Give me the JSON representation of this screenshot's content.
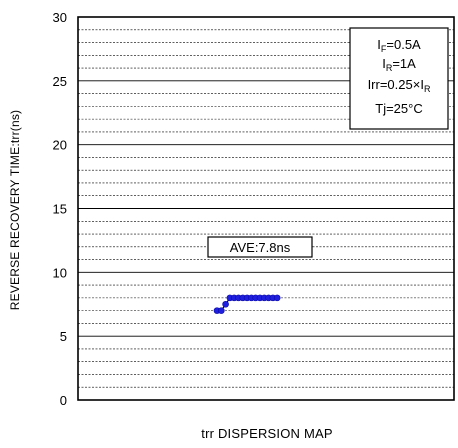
{
  "chart_data": {
    "type": "scatter",
    "title": "",
    "xlabel": "trr DISPERSION MAP",
    "ylabel": "REVERSE RECOVERY TIME:trr(ns)",
    "ylim": [
      0,
      30
    ],
    "yticks": [
      0,
      5,
      10,
      15,
      20,
      25,
      30
    ],
    "grid": true,
    "grid_minor_step": 1,
    "marker_color": "#1f1fe0",
    "points": [
      {
        "x": 1,
        "y": 7.0
      },
      {
        "x": 2,
        "y": 7.0
      },
      {
        "x": 3,
        "y": 7.5
      },
      {
        "x": 4,
        "y": 8.0
      },
      {
        "x": 5,
        "y": 8.0
      },
      {
        "x": 6,
        "y": 8.0
      },
      {
        "x": 7,
        "y": 8.0
      },
      {
        "x": 8,
        "y": 8.0
      },
      {
        "x": 9,
        "y": 8.0
      },
      {
        "x": 10,
        "y": 8.0
      },
      {
        "x": 11,
        "y": 8.0
      },
      {
        "x": 12,
        "y": 8.0
      },
      {
        "x": 13,
        "y": 8.0
      },
      {
        "x": 14,
        "y": 8.0
      },
      {
        "x": 15,
        "y": 8.0
      }
    ],
    "average_label": "AVE:7.8ns",
    "conditions": {
      "line1_main": "I",
      "line1_sub": "F",
      "line1_rest": "=0.5A",
      "line2_main": "I",
      "line2_sub": "R",
      "line2_rest": "=1A",
      "line3_pre": "Irr=0.25×I",
      "line3_sub": "R",
      "line4": "Tj=25°C"
    }
  }
}
